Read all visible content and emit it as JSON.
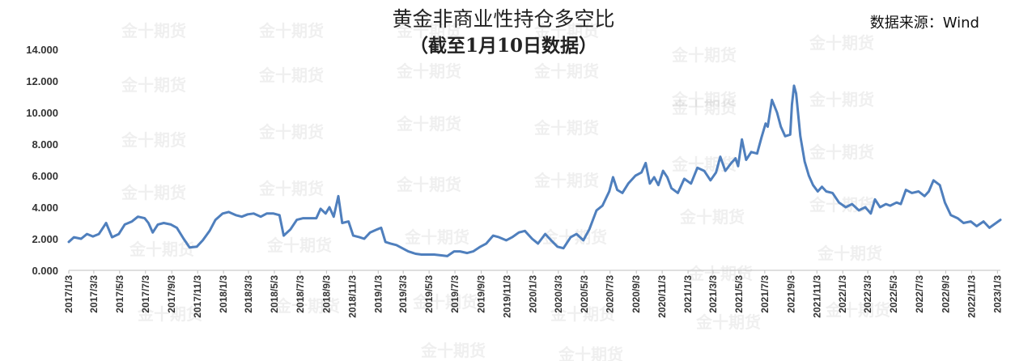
{
  "chart_data": {
    "type": "line",
    "title": "黄金非商业性持仓多空比",
    "subtitle": "（截至1月10日数据）",
    "source": "数据来源：Wind",
    "watermark": "金十期货",
    "ylim": [
      0,
      14
    ],
    "yticks": [
      "0.000",
      "2.000",
      "4.000",
      "6.000",
      "8.000",
      "10.000",
      "12.000",
      "14.000"
    ],
    "line_color": "#4f7fbd",
    "x_start": "2017-01-03",
    "x_end": "2023-01-10",
    "xticks": [
      {
        "date": "2017-01-03",
        "label": "2017/1/3"
      },
      {
        "date": "2017-03-03",
        "label": "2017/3/3"
      },
      {
        "date": "2017-05-03",
        "label": "2017/5/3"
      },
      {
        "date": "2017-07-03",
        "label": "2017/7/3"
      },
      {
        "date": "2017-09-03",
        "label": "2017/9/3"
      },
      {
        "date": "2017-11-03",
        "label": "2017/11/3"
      },
      {
        "date": "2018-01-03",
        "label": "2018/1/3"
      },
      {
        "date": "2018-03-03",
        "label": "2018/3/3"
      },
      {
        "date": "2018-05-03",
        "label": "2018/5/3"
      },
      {
        "date": "2018-07-03",
        "label": "2018/7/3"
      },
      {
        "date": "2018-09-03",
        "label": "2018/9/3"
      },
      {
        "date": "2018-11-03",
        "label": "2018/11/3"
      },
      {
        "date": "2019-01-03",
        "label": "2019/1/3"
      },
      {
        "date": "2019-03-03",
        "label": "2019/3/3"
      },
      {
        "date": "2019-05-03",
        "label": "2019/5/3"
      },
      {
        "date": "2019-07-03",
        "label": "2019/7/3"
      },
      {
        "date": "2019-09-03",
        "label": "2019/9/3"
      },
      {
        "date": "2019-11-03",
        "label": "2019/11/3"
      },
      {
        "date": "2020-01-03",
        "label": "2020/1/3"
      },
      {
        "date": "2020-03-03",
        "label": "2020/3/3"
      },
      {
        "date": "2020-05-03",
        "label": "2020/5/3"
      },
      {
        "date": "2020-07-03",
        "label": "2020/7/3"
      },
      {
        "date": "2020-09-03",
        "label": "2020/9/3"
      },
      {
        "date": "2020-11-03",
        "label": "2020/11/3"
      },
      {
        "date": "2021-01-03",
        "label": "2021/1/3"
      },
      {
        "date": "2021-03-03",
        "label": "2021/3/3"
      },
      {
        "date": "2021-05-03",
        "label": "2021/5/3"
      },
      {
        "date": "2021-07-03",
        "label": "2021/7/3"
      },
      {
        "date": "2021-09-03",
        "label": "2021/9/3"
      },
      {
        "date": "2021-11-03",
        "label": "2021/11/3"
      },
      {
        "date": "2022-01-03",
        "label": "2022/1/3"
      },
      {
        "date": "2022-03-03",
        "label": "2022/3/3"
      },
      {
        "date": "2022-05-03",
        "label": "2022/5/3"
      },
      {
        "date": "2022-07-03",
        "label": "2022/7/3"
      },
      {
        "date": "2022-09-03",
        "label": "2022/9/3"
      },
      {
        "date": "2022-11-03",
        "label": "2022/11/3"
      },
      {
        "date": "2023-01-03",
        "label": "2023/1/3"
      }
    ],
    "series": [
      {
        "points": [
          [
            "2017-01-03",
            1.8
          ],
          [
            "2017-01-15",
            2.1
          ],
          [
            "2017-02-01",
            2.0
          ],
          [
            "2017-02-15",
            2.3
          ],
          [
            "2017-03-01",
            2.15
          ],
          [
            "2017-03-15",
            2.3
          ],
          [
            "2017-04-01",
            3.0
          ],
          [
            "2017-04-15",
            2.1
          ],
          [
            "2017-05-01",
            2.3
          ],
          [
            "2017-05-15",
            2.9
          ],
          [
            "2017-06-01",
            3.1
          ],
          [
            "2017-06-15",
            3.4
          ],
          [
            "2017-07-01",
            3.3
          ],
          [
            "2017-07-10",
            3.0
          ],
          [
            "2017-07-20",
            2.4
          ],
          [
            "2017-08-01",
            2.9
          ],
          [
            "2017-08-15",
            3.0
          ],
          [
            "2017-09-01",
            2.9
          ],
          [
            "2017-09-15",
            2.7
          ],
          [
            "2017-10-01",
            2.0
          ],
          [
            "2017-10-15",
            1.45
          ],
          [
            "2017-11-01",
            1.5
          ],
          [
            "2017-11-15",
            1.9
          ],
          [
            "2017-12-01",
            2.5
          ],
          [
            "2017-12-15",
            3.2
          ],
          [
            "2018-01-01",
            3.6
          ],
          [
            "2018-01-15",
            3.7
          ],
          [
            "2018-02-01",
            3.5
          ],
          [
            "2018-02-15",
            3.4
          ],
          [
            "2018-03-01",
            3.55
          ],
          [
            "2018-03-15",
            3.6
          ],
          [
            "2018-04-01",
            3.4
          ],
          [
            "2018-04-15",
            3.6
          ],
          [
            "2018-05-01",
            3.6
          ],
          [
            "2018-05-15",
            3.5
          ],
          [
            "2018-05-25",
            2.2
          ],
          [
            "2018-06-10",
            2.6
          ],
          [
            "2018-06-25",
            3.2
          ],
          [
            "2018-07-10",
            3.3
          ],
          [
            "2018-07-25",
            3.3
          ],
          [
            "2018-08-10",
            3.3
          ],
          [
            "2018-08-20",
            3.9
          ],
          [
            "2018-09-01",
            3.6
          ],
          [
            "2018-09-10",
            4.0
          ],
          [
            "2018-09-20",
            3.4
          ],
          [
            "2018-10-01",
            4.7
          ],
          [
            "2018-10-10",
            3.0
          ],
          [
            "2018-10-25",
            3.1
          ],
          [
            "2018-11-05",
            2.2
          ],
          [
            "2018-11-20",
            2.1
          ],
          [
            "2018-12-01",
            2.0
          ],
          [
            "2018-12-15",
            2.4
          ],
          [
            "2019-01-01",
            2.6
          ],
          [
            "2019-01-10",
            2.7
          ],
          [
            "2019-01-20",
            1.8
          ],
          [
            "2019-02-01",
            1.7
          ],
          [
            "2019-02-15",
            1.6
          ],
          [
            "2019-03-01",
            1.4
          ],
          [
            "2019-03-15",
            1.2
          ],
          [
            "2019-04-01",
            1.05
          ],
          [
            "2019-04-15",
            1.0
          ],
          [
            "2019-05-01",
            1.0
          ],
          [
            "2019-05-15",
            1.0
          ],
          [
            "2019-06-01",
            0.95
          ],
          [
            "2019-06-15",
            0.9
          ],
          [
            "2019-07-01",
            1.2
          ],
          [
            "2019-07-15",
            1.2
          ],
          [
            "2019-08-01",
            1.1
          ],
          [
            "2019-08-15",
            1.2
          ],
          [
            "2019-09-01",
            1.5
          ],
          [
            "2019-09-15",
            1.7
          ],
          [
            "2019-10-01",
            2.2
          ],
          [
            "2019-10-15",
            2.1
          ],
          [
            "2019-11-01",
            1.9
          ],
          [
            "2019-11-15",
            2.1
          ],
          [
            "2019-12-01",
            2.4
          ],
          [
            "2019-12-15",
            2.5
          ],
          [
            "2020-01-01",
            2.0
          ],
          [
            "2020-01-15",
            1.7
          ],
          [
            "2020-02-01",
            2.3
          ],
          [
            "2020-02-15",
            1.9
          ],
          [
            "2020-03-01",
            1.5
          ],
          [
            "2020-03-15",
            1.4
          ],
          [
            "2020-04-01",
            2.1
          ],
          [
            "2020-04-15",
            2.3
          ],
          [
            "2020-05-01",
            1.9
          ],
          [
            "2020-05-15",
            2.6
          ],
          [
            "2020-06-01",
            3.8
          ],
          [
            "2020-06-15",
            4.1
          ],
          [
            "2020-07-01",
            5.0
          ],
          [
            "2020-07-10",
            5.9
          ],
          [
            "2020-07-20",
            5.1
          ],
          [
            "2020-08-01",
            4.9
          ],
          [
            "2020-08-15",
            5.5
          ],
          [
            "2020-09-01",
            6.0
          ],
          [
            "2020-09-15",
            6.2
          ],
          [
            "2020-09-25",
            6.8
          ],
          [
            "2020-10-05",
            5.5
          ],
          [
            "2020-10-15",
            5.9
          ],
          [
            "2020-10-25",
            5.4
          ],
          [
            "2020-11-05",
            6.3
          ],
          [
            "2020-11-15",
            5.9
          ],
          [
            "2020-11-25",
            5.2
          ],
          [
            "2020-12-10",
            4.9
          ],
          [
            "2020-12-25",
            5.8
          ],
          [
            "2021-01-10",
            5.5
          ],
          [
            "2021-01-25",
            6.5
          ],
          [
            "2021-02-10",
            6.3
          ],
          [
            "2021-02-25",
            5.7
          ],
          [
            "2021-03-10",
            6.2
          ],
          [
            "2021-03-20",
            7.2
          ],
          [
            "2021-04-01",
            6.3
          ],
          [
            "2021-04-15",
            6.8
          ],
          [
            "2021-04-25",
            7.1
          ],
          [
            "2021-05-01",
            6.6
          ],
          [
            "2021-05-10",
            8.3
          ],
          [
            "2021-05-20",
            7.0
          ],
          [
            "2021-06-01",
            7.5
          ],
          [
            "2021-06-15",
            7.4
          ],
          [
            "2021-06-25",
            8.4
          ],
          [
            "2021-07-05",
            9.3
          ],
          [
            "2021-07-10",
            9.1
          ],
          [
            "2021-07-20",
            10.8
          ],
          [
            "2021-08-01",
            10.0
          ],
          [
            "2021-08-10",
            9.1
          ],
          [
            "2021-08-20",
            8.5
          ],
          [
            "2021-09-01",
            8.6
          ],
          [
            "2021-09-05",
            10.5
          ],
          [
            "2021-09-10",
            11.7
          ],
          [
            "2021-09-15",
            11.2
          ],
          [
            "2021-09-25",
            8.5
          ],
          [
            "2021-10-05",
            6.9
          ],
          [
            "2021-10-15",
            6.0
          ],
          [
            "2021-10-25",
            5.4
          ],
          [
            "2021-11-05",
            5.0
          ],
          [
            "2021-11-15",
            5.3
          ],
          [
            "2021-11-25",
            5.0
          ],
          [
            "2021-12-10",
            4.9
          ],
          [
            "2021-12-25",
            4.3
          ],
          [
            "2022-01-10",
            4.0
          ],
          [
            "2022-01-25",
            4.2
          ],
          [
            "2022-02-10",
            3.8
          ],
          [
            "2022-02-25",
            4.0
          ],
          [
            "2022-03-10",
            3.6
          ],
          [
            "2022-03-20",
            4.5
          ],
          [
            "2022-04-01",
            4.0
          ],
          [
            "2022-04-15",
            4.2
          ],
          [
            "2022-04-25",
            4.1
          ],
          [
            "2022-05-10",
            4.3
          ],
          [
            "2022-05-20",
            4.2
          ],
          [
            "2022-06-01",
            5.1
          ],
          [
            "2022-06-15",
            4.9
          ],
          [
            "2022-07-01",
            5.0
          ],
          [
            "2022-07-15",
            4.7
          ],
          [
            "2022-07-25",
            5.0
          ],
          [
            "2022-08-05",
            5.7
          ],
          [
            "2022-08-20",
            5.4
          ],
          [
            "2022-09-01",
            4.3
          ],
          [
            "2022-09-15",
            3.5
          ],
          [
            "2022-10-01",
            3.3
          ],
          [
            "2022-10-15",
            3.0
          ],
          [
            "2022-11-01",
            3.1
          ],
          [
            "2022-11-15",
            2.8
          ],
          [
            "2022-12-01",
            3.1
          ],
          [
            "2022-12-15",
            2.7
          ],
          [
            "2023-01-10",
            3.2
          ]
        ]
      }
    ]
  }
}
